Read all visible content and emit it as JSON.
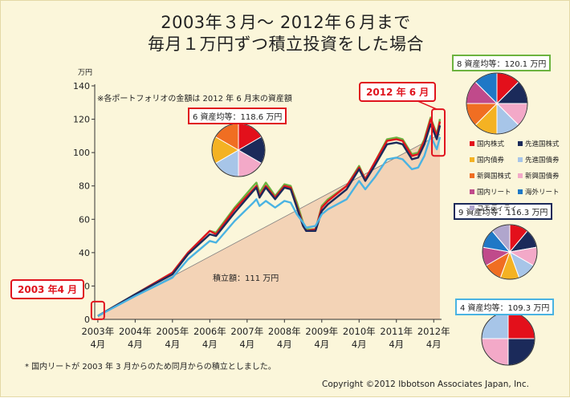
{
  "title_line1": "2003年３月～ 2012年６月まで",
  "title_line2": "毎月１万円ずつ積立投資をした場合",
  "note_portfolio": "※各ポートフォリオの金額は 2012 年 6 月末の資産額",
  "note_footnote": "* 国内リートが 2003 年 3 月からのため同月からの積立としました。",
  "copyright": "Copyright ©2012 Ibbotson Associates Japan, Inc.",
  "callout_start": "2003 年4 月",
  "callout_end": "2012 年 6 月",
  "contribution_label": "積立額：111 万円",
  "colors": {
    "domestic_stock": "#e3101b",
    "developed_stock": "#1b2a5a",
    "domestic_bond": "#f4b223",
    "developed_bond": "#a7c5e8",
    "emerging_stock": "#f06e22",
    "emerging_bond": "#f3a9c8",
    "domestic_reit": "#c04a8b",
    "overseas_reit": "#1f78c6",
    "commodity": "#b0a6cd",
    "contribution_fill": "#f3d3b6"
  },
  "legend": [
    {
      "label": "国内株式",
      "color": "#e3101b"
    },
    {
      "label": "先進国株式",
      "color": "#1b2a5a"
    },
    {
      "label": "国内債券",
      "color": "#f4b223"
    },
    {
      "label": "先進国債券",
      "color": "#a7c5e8"
    },
    {
      "label": "新興国株式",
      "color": "#f06e22"
    },
    {
      "label": "新興国債券",
      "color": "#f3a9c8"
    },
    {
      "label": "国内リート",
      "color": "#c04a8b"
    },
    {
      "label": "海外リート",
      "color": "#1f78c6"
    },
    {
      "label": "コモディティ",
      "color": "#b0a6cd"
    }
  ],
  "pies": [
    {
      "id": "six",
      "label": "6 資産均等：118.6 万円",
      "border": "#e0141e",
      "slices": [
        {
          "name": "国内株式",
          "value": 1,
          "color": "#e3101b"
        },
        {
          "name": "先進国株式",
          "value": 1,
          "color": "#1b2a5a"
        },
        {
          "name": "新興国債券",
          "value": 1,
          "color": "#f3a9c8"
        },
        {
          "name": "先進国債券",
          "value": 1,
          "color": "#a7c5e8"
        },
        {
          "name": "国内債券",
          "value": 1,
          "color": "#f4b223"
        },
        {
          "name": "新興国株式",
          "value": 1,
          "color": "#f06e22"
        }
      ]
    },
    {
      "id": "eight",
      "label": "8 資産均等：120.1 万円",
      "border": "#6cb33f",
      "slices": [
        {
          "name": "国内株式",
          "value": 1,
          "color": "#e3101b"
        },
        {
          "name": "先進国株式",
          "value": 1,
          "color": "#1b2a5a"
        },
        {
          "name": "新興国債券",
          "value": 1,
          "color": "#f3a9c8"
        },
        {
          "name": "先進国債券",
          "value": 1,
          "color": "#a7c5e8"
        },
        {
          "name": "国内債券",
          "value": 1,
          "color": "#f4b223"
        },
        {
          "name": "新興国株式",
          "value": 1,
          "color": "#f06e22"
        },
        {
          "name": "国内リート",
          "value": 1,
          "color": "#c04a8b"
        },
        {
          "name": "海外リート",
          "value": 1,
          "color": "#1f78c6"
        }
      ]
    },
    {
      "id": "nine",
      "label": "9 資産均等：116.3 万円",
      "border": "#1b2a5a",
      "slices": [
        {
          "name": "国内株式",
          "value": 1,
          "color": "#e3101b"
        },
        {
          "name": "先進国株式",
          "value": 1,
          "color": "#1b2a5a"
        },
        {
          "name": "新興国債券",
          "value": 1,
          "color": "#f3a9c8"
        },
        {
          "name": "先進国債券",
          "value": 1,
          "color": "#a7c5e8"
        },
        {
          "name": "国内債券",
          "value": 1,
          "color": "#f4b223"
        },
        {
          "name": "新興国株式",
          "value": 1,
          "color": "#f06e22"
        },
        {
          "name": "国内リート",
          "value": 1,
          "color": "#c04a8b"
        },
        {
          "name": "海外リート",
          "value": 1,
          "color": "#1f78c6"
        },
        {
          "name": "コモディティ",
          "value": 1,
          "color": "#b0a6cd"
        }
      ]
    },
    {
      "id": "four",
      "label": "4 資産均等：109.3 万円",
      "border": "#4ab3e2",
      "slices": [
        {
          "name": "国内株式",
          "value": 1,
          "color": "#e3101b"
        },
        {
          "name": "先進国株式",
          "value": 1,
          "color": "#1b2a5a"
        },
        {
          "name": "先進国債券",
          "value": 1,
          "color": "#f3a9c8"
        },
        {
          "name": "国内債券",
          "value": 1,
          "color": "#a7c5e8"
        }
      ]
    }
  ],
  "chart_data": {
    "type": "line",
    "ylabel": "万円",
    "ylim": [
      0,
      140
    ],
    "yticks": [
      0,
      20,
      40,
      60,
      80,
      100,
      120,
      140
    ],
    "x_tick_labels_top": [
      "2003年",
      "2004年",
      "2005年",
      "2006年",
      "2007年",
      "2008年",
      "2009年",
      "2010年",
      "2011年",
      "2012年"
    ],
    "x_tick_labels_bottom": [
      "4月",
      "4月",
      "4月",
      "4月",
      "4月",
      "4月",
      "4月",
      "4月",
      "4月",
      "4月"
    ],
    "x_range": [
      "2003-03",
      "2012-06"
    ],
    "grid": false,
    "contribution": {
      "label": "積立額：111 万円",
      "points": [
        [
          "2003-04",
          2
        ],
        [
          "2012-06",
          111
        ]
      ],
      "fill": "area"
    },
    "series": [
      {
        "name": "8 資産均等",
        "color": "#6cb33f",
        "width": 2.4,
        "points": [
          [
            "2003-04",
            2
          ],
          [
            "2004-04",
            15
          ],
          [
            "2005-04",
            28
          ],
          [
            "2005-09",
            40
          ],
          [
            "2006-04",
            53
          ],
          [
            "2006-06",
            52
          ],
          [
            "2006-12",
            67
          ],
          [
            "2007-06",
            80
          ],
          [
            "2007-07",
            82
          ],
          [
            "2007-08",
            76
          ],
          [
            "2007-10",
            82
          ],
          [
            "2008-01",
            74
          ],
          [
            "2008-04",
            81
          ],
          [
            "2008-06",
            80
          ],
          [
            "2008-08",
            70
          ],
          [
            "2008-10",
            58
          ],
          [
            "2008-11",
            54
          ],
          [
            "2009-02",
            54
          ],
          [
            "2009-04",
            68
          ],
          [
            "2009-06",
            72
          ],
          [
            "2009-12",
            80
          ],
          [
            "2010-04",
            92
          ],
          [
            "2010-06",
            84
          ],
          [
            "2010-09",
            94
          ],
          [
            "2011-01",
            108
          ],
          [
            "2011-04",
            109
          ],
          [
            "2011-06",
            108
          ],
          [
            "2011-09",
            99
          ],
          [
            "2011-11",
            100
          ],
          [
            "2012-01",
            108
          ],
          [
            "2012-03",
            121
          ],
          [
            "2012-05",
            111
          ],
          [
            "2012-06",
            120.1
          ]
        ]
      },
      {
        "name": "6 資産均等",
        "color": "#e0141e",
        "width": 2.4,
        "points": [
          [
            "2003-04",
            2
          ],
          [
            "2004-04",
            15
          ],
          [
            "2005-04",
            28
          ],
          [
            "2005-09",
            40
          ],
          [
            "2006-04",
            53
          ],
          [
            "2006-06",
            51
          ],
          [
            "2006-12",
            66
          ],
          [
            "2007-06",
            78
          ],
          [
            "2007-07",
            80
          ],
          [
            "2007-08",
            74
          ],
          [
            "2007-10",
            80
          ],
          [
            "2008-01",
            73
          ],
          [
            "2008-04",
            80
          ],
          [
            "2008-06",
            79
          ],
          [
            "2008-08",
            68
          ],
          [
            "2008-10",
            57
          ],
          [
            "2008-11",
            53
          ],
          [
            "2009-02",
            54
          ],
          [
            "2009-04",
            67
          ],
          [
            "2009-06",
            71
          ],
          [
            "2009-12",
            80
          ],
          [
            "2010-04",
            91
          ],
          [
            "2010-06",
            84
          ],
          [
            "2010-09",
            94
          ],
          [
            "2011-01",
            107
          ],
          [
            "2011-04",
            108
          ],
          [
            "2011-06",
            107
          ],
          [
            "2011-09",
            98
          ],
          [
            "2011-11",
            99
          ],
          [
            "2012-01",
            107
          ],
          [
            "2012-03",
            120
          ],
          [
            "2012-05",
            110
          ],
          [
            "2012-06",
            118.6
          ]
        ]
      },
      {
        "name": "9 資産均等",
        "color": "#1b2a5a",
        "width": 2.4,
        "points": [
          [
            "2003-04",
            2
          ],
          [
            "2004-04",
            15
          ],
          [
            "2005-04",
            27
          ],
          [
            "2005-09",
            39
          ],
          [
            "2006-04",
            51
          ],
          [
            "2006-06",
            50
          ],
          [
            "2006-12",
            64
          ],
          [
            "2007-06",
            77
          ],
          [
            "2007-07",
            79
          ],
          [
            "2007-08",
            73
          ],
          [
            "2007-10",
            79
          ],
          [
            "2008-01",
            72
          ],
          [
            "2008-04",
            79
          ],
          [
            "2008-06",
            78
          ],
          [
            "2008-08",
            67
          ],
          [
            "2008-10",
            56
          ],
          [
            "2008-11",
            53
          ],
          [
            "2009-02",
            53
          ],
          [
            "2009-04",
            65
          ],
          [
            "2009-06",
            69
          ],
          [
            "2009-12",
            78
          ],
          [
            "2010-04",
            90
          ],
          [
            "2010-06",
            83
          ],
          [
            "2010-09",
            92
          ],
          [
            "2011-01",
            105
          ],
          [
            "2011-04",
            106
          ],
          [
            "2011-06",
            105
          ],
          [
            "2011-09",
            96
          ],
          [
            "2011-11",
            97
          ],
          [
            "2012-01",
            105
          ],
          [
            "2012-03",
            117
          ],
          [
            "2012-05",
            108
          ],
          [
            "2012-06",
            116.3
          ]
        ]
      },
      {
        "name": "4 資産均等",
        "color": "#4ab3e2",
        "width": 2.4,
        "points": [
          [
            "2003-04",
            2
          ],
          [
            "2004-04",
            14
          ],
          [
            "2005-04",
            25
          ],
          [
            "2005-09",
            36
          ],
          [
            "2006-04",
            47
          ],
          [
            "2006-06",
            46
          ],
          [
            "2006-12",
            59
          ],
          [
            "2007-06",
            70
          ],
          [
            "2007-07",
            72
          ],
          [
            "2007-08",
            68
          ],
          [
            "2007-10",
            71
          ],
          [
            "2008-01",
            67
          ],
          [
            "2008-04",
            71
          ],
          [
            "2008-06",
            70
          ],
          [
            "2008-08",
            63
          ],
          [
            "2008-10",
            58
          ],
          [
            "2008-11",
            55
          ],
          [
            "2009-02",
            56
          ],
          [
            "2009-04",
            63
          ],
          [
            "2009-06",
            66
          ],
          [
            "2009-12",
            72
          ],
          [
            "2010-04",
            83
          ],
          [
            "2010-06",
            78
          ],
          [
            "2010-09",
            85
          ],
          [
            "2011-01",
            96
          ],
          [
            "2011-04",
            97
          ],
          [
            "2011-06",
            96
          ],
          [
            "2011-09",
            90
          ],
          [
            "2011-11",
            91
          ],
          [
            "2012-01",
            98
          ],
          [
            "2012-03",
            110
          ],
          [
            "2012-05",
            102
          ],
          [
            "2012-06",
            109.3
          ]
        ]
      }
    ]
  }
}
